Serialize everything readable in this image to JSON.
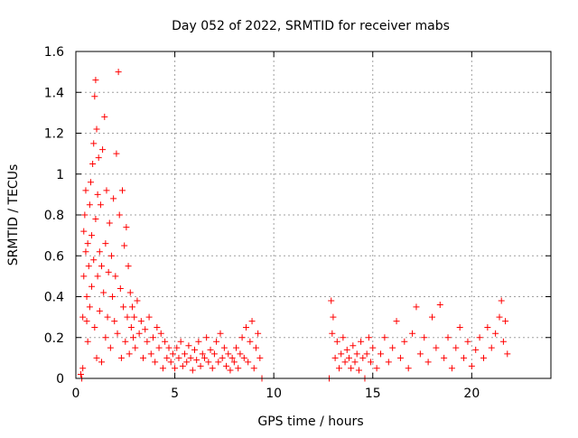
{
  "chart_data": {
    "type": "scatter",
    "title": "Day 052 of 2022, SRMTID for receiver mabs",
    "xlabel": "GPS time / hours",
    "ylabel": "SRMTID / TECUs",
    "xlim": [
      0,
      24
    ],
    "ylim": [
      0,
      1.6
    ],
    "xticks": [
      0,
      5,
      10,
      15,
      20
    ],
    "yticks": [
      0,
      0.2,
      0.4,
      0.6,
      0.8,
      1,
      1.2,
      1.4,
      1.6
    ],
    "xtick_labels": [
      "0",
      "5",
      "10",
      "15",
      "20"
    ],
    "ytick_labels": [
      "0",
      "0.2",
      "0.4",
      "0.6",
      "0.8",
      "1",
      "1.2",
      "1.4",
      "1.6"
    ],
    "grid": true,
    "marker": "plus",
    "color": "#ff0000",
    "points": [
      [
        0.25,
        0.02
      ],
      [
        0.3,
        0.0
      ],
      [
        0.35,
        0.05
      ],
      [
        0.35,
        0.3
      ],
      [
        0.4,
        0.5
      ],
      [
        0.4,
        0.72
      ],
      [
        0.45,
        0.8
      ],
      [
        0.5,
        0.62
      ],
      [
        0.5,
        0.92
      ],
      [
        0.55,
        0.4
      ],
      [
        0.55,
        0.28
      ],
      [
        0.6,
        0.18
      ],
      [
        0.6,
        0.66
      ],
      [
        0.65,
        0.55
      ],
      [
        0.7,
        0.35
      ],
      [
        0.7,
        0.85
      ],
      [
        0.75,
        0.96
      ],
      [
        0.8,
        0.45
      ],
      [
        0.8,
        0.7
      ],
      [
        0.85,
        1.05
      ],
      [
        0.9,
        1.15
      ],
      [
        0.9,
        0.58
      ],
      [
        0.95,
        1.38
      ],
      [
        0.95,
        0.25
      ],
      [
        1.0,
        1.46
      ],
      [
        1.0,
        0.78
      ],
      [
        1.05,
        1.22
      ],
      [
        1.05,
        0.1
      ],
      [
        1.1,
        0.9
      ],
      [
        1.1,
        0.5
      ],
      [
        1.15,
        1.08
      ],
      [
        1.2,
        0.62
      ],
      [
        1.2,
        0.33
      ],
      [
        1.25,
        0.85
      ],
      [
        1.3,
        0.55
      ],
      [
        1.3,
        0.08
      ],
      [
        1.35,
        1.12
      ],
      [
        1.4,
        0.42
      ],
      [
        1.45,
        1.28
      ],
      [
        1.5,
        0.66
      ],
      [
        1.5,
        0.2
      ],
      [
        1.55,
        0.92
      ],
      [
        1.6,
        0.3
      ],
      [
        1.65,
        0.52
      ],
      [
        1.7,
        0.76
      ],
      [
        1.75,
        0.15
      ],
      [
        1.8,
        0.6
      ],
      [
        1.85,
        0.4
      ],
      [
        1.9,
        0.88
      ],
      [
        1.95,
        0.28
      ],
      [
        2.0,
        0.5
      ],
      [
        2.05,
        1.1
      ],
      [
        2.1,
        0.22
      ],
      [
        2.15,
        1.5
      ],
      [
        2.2,
        0.8
      ],
      [
        2.25,
        0.44
      ],
      [
        2.3,
        0.1
      ],
      [
        2.35,
        0.92
      ],
      [
        2.4,
        0.35
      ],
      [
        2.45,
        0.65
      ],
      [
        2.5,
        0.18
      ],
      [
        2.55,
        0.74
      ],
      [
        2.6,
        0.3
      ],
      [
        2.65,
        0.55
      ],
      [
        2.7,
        0.12
      ],
      [
        2.75,
        0.42
      ],
      [
        2.8,
        0.25
      ],
      [
        2.85,
        0.35
      ],
      [
        2.9,
        0.2
      ],
      [
        2.95,
        0.3
      ],
      [
        3.0,
        0.15
      ],
      [
        3.1,
        0.38
      ],
      [
        3.2,
        0.22
      ],
      [
        3.3,
        0.28
      ],
      [
        3.4,
        0.1
      ],
      [
        3.5,
        0.24
      ],
      [
        3.6,
        0.18
      ],
      [
        3.7,
        0.3
      ],
      [
        3.8,
        0.12
      ],
      [
        3.9,
        0.2
      ],
      [
        4.0,
        0.08
      ],
      [
        4.1,
        0.25
      ],
      [
        4.2,
        0.15
      ],
      [
        4.3,
        0.22
      ],
      [
        4.4,
        0.05
      ],
      [
        4.5,
        0.18
      ],
      [
        4.6,
        0.1
      ],
      [
        4.7,
        0.15
      ],
      [
        4.8,
        0.08
      ],
      [
        4.9,
        0.12
      ],
      [
        5.0,
        0.05
      ],
      [
        5.1,
        0.15
      ],
      [
        5.2,
        0.1
      ],
      [
        5.3,
        0.18
      ],
      [
        5.4,
        0.06
      ],
      [
        5.5,
        0.12
      ],
      [
        5.6,
        0.08
      ],
      [
        5.7,
        0.16
      ],
      [
        5.8,
        0.1
      ],
      [
        5.9,
        0.04
      ],
      [
        6.0,
        0.14
      ],
      [
        6.1,
        0.09
      ],
      [
        6.2,
        0.18
      ],
      [
        6.3,
        0.06
      ],
      [
        6.4,
        0.12
      ],
      [
        6.5,
        0.1
      ],
      [
        6.6,
        0.2
      ],
      [
        6.7,
        0.08
      ],
      [
        6.8,
        0.14
      ],
      [
        6.9,
        0.05
      ],
      [
        7.0,
        0.12
      ],
      [
        7.1,
        0.18
      ],
      [
        7.2,
        0.08
      ],
      [
        7.3,
        0.22
      ],
      [
        7.4,
        0.1
      ],
      [
        7.5,
        0.15
      ],
      [
        7.6,
        0.06
      ],
      [
        7.7,
        0.12
      ],
      [
        7.8,
        0.04
      ],
      [
        7.9,
        0.1
      ],
      [
        8.0,
        0.08
      ],
      [
        8.1,
        0.15
      ],
      [
        8.2,
        0.05
      ],
      [
        8.3,
        0.12
      ],
      [
        8.4,
        0.2
      ],
      [
        8.5,
        0.1
      ],
      [
        8.6,
        0.25
      ],
      [
        8.7,
        0.08
      ],
      [
        8.8,
        0.18
      ],
      [
        8.9,
        0.28
      ],
      [
        9.0,
        0.05
      ],
      [
        9.1,
        0.15
      ],
      [
        9.2,
        0.22
      ],
      [
        9.3,
        0.1
      ],
      [
        9.4,
        0.0
      ],
      [
        12.8,
        0.0
      ],
      [
        12.9,
        0.38
      ],
      [
        12.95,
        0.22
      ],
      [
        13.0,
        0.3
      ],
      [
        13.1,
        0.1
      ],
      [
        13.2,
        0.18
      ],
      [
        13.3,
        0.05
      ],
      [
        13.4,
        0.12
      ],
      [
        13.5,
        0.2
      ],
      [
        13.6,
        0.08
      ],
      [
        13.7,
        0.14
      ],
      [
        13.8,
        0.1
      ],
      [
        13.9,
        0.05
      ],
      [
        14.0,
        0.16
      ],
      [
        14.1,
        0.08
      ],
      [
        14.2,
        0.12
      ],
      [
        14.3,
        0.04
      ],
      [
        14.4,
        0.18
      ],
      [
        14.5,
        0.1
      ],
      [
        14.6,
        0.0
      ],
      [
        14.7,
        0.12
      ],
      [
        14.8,
        0.2
      ],
      [
        14.9,
        0.08
      ],
      [
        15.0,
        0.15
      ],
      [
        15.2,
        0.05
      ],
      [
        15.4,
        0.12
      ],
      [
        15.6,
        0.2
      ],
      [
        15.8,
        0.08
      ],
      [
        16.0,
        0.15
      ],
      [
        16.2,
        0.28
      ],
      [
        16.4,
        0.1
      ],
      [
        16.6,
        0.18
      ],
      [
        16.8,
        0.05
      ],
      [
        17.0,
        0.22
      ],
      [
        17.2,
        0.35
      ],
      [
        17.4,
        0.12
      ],
      [
        17.6,
        0.2
      ],
      [
        17.8,
        0.08
      ],
      [
        18.0,
        0.3
      ],
      [
        18.2,
        0.15
      ],
      [
        18.4,
        0.36
      ],
      [
        18.6,
        0.1
      ],
      [
        18.8,
        0.2
      ],
      [
        19.0,
        0.05
      ],
      [
        19.2,
        0.15
      ],
      [
        19.4,
        0.25
      ],
      [
        19.6,
        0.1
      ],
      [
        19.8,
        0.18
      ],
      [
        20.0,
        0.06
      ],
      [
        20.2,
        0.14
      ],
      [
        20.4,
        0.2
      ],
      [
        20.6,
        0.1
      ],
      [
        20.8,
        0.25
      ],
      [
        21.0,
        0.15
      ],
      [
        21.2,
        0.22
      ],
      [
        21.4,
        0.3
      ],
      [
        21.5,
        0.38
      ],
      [
        21.6,
        0.18
      ],
      [
        21.7,
        0.28
      ],
      [
        21.8,
        0.12
      ]
    ]
  }
}
